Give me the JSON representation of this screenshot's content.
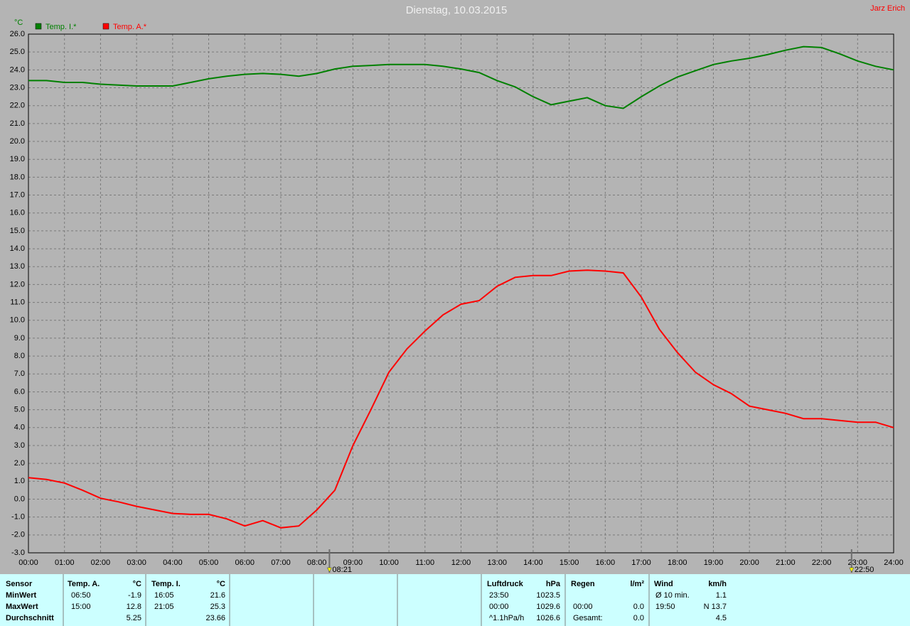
{
  "chart_data": {
    "type": "line",
    "title": "Dienstag, 10.03.2015",
    "author": "Jarz Erich",
    "y_label": "°C",
    "x": [
      0,
      0.5,
      1,
      1.5,
      2,
      2.5,
      3,
      3.5,
      4,
      4.5,
      5,
      5.5,
      6,
      6.5,
      7,
      7.5,
      8,
      8.5,
      9,
      9.5,
      10,
      10.5,
      11,
      11.5,
      12,
      12.5,
      13,
      13.5,
      14,
      14.5,
      15,
      15.5,
      16,
      16.5,
      17,
      17.5,
      18,
      18.5,
      19,
      19.5,
      20,
      20.5,
      21,
      21.5,
      22,
      22.5,
      23,
      23.5,
      24
    ],
    "series": [
      {
        "name": "Temp. I.*",
        "color": "#008000",
        "values": [
          23.4,
          23.4,
          23.3,
          23.3,
          23.2,
          23.15,
          23.1,
          23.1,
          23.1,
          23.3,
          23.5,
          23.65,
          23.75,
          23.8,
          23.75,
          23.65,
          23.8,
          24.05,
          24.2,
          24.25,
          24.3,
          24.3,
          24.3,
          24.2,
          24.05,
          23.85,
          23.4,
          23.05,
          22.5,
          22.05,
          22.25,
          22.45,
          22.0,
          21.85,
          22.5,
          23.1,
          23.6,
          23.95,
          24.3,
          24.5,
          24.65,
          24.85,
          25.1,
          25.3,
          25.25,
          24.9,
          24.5,
          24.2,
          24.0
        ]
      },
      {
        "name": "Temp. A.*",
        "color": "#ff0000",
        "values": [
          1.2,
          1.1,
          0.9,
          0.5,
          0.05,
          -0.15,
          -0.4,
          -0.6,
          -0.8,
          -0.85,
          -0.85,
          -1.1,
          -1.5,
          -1.2,
          -1.6,
          -1.5,
          -0.6,
          0.5,
          3.0,
          5.0,
          7.1,
          8.4,
          9.4,
          10.3,
          10.9,
          11.1,
          11.9,
          12.4,
          12.5,
          12.5,
          12.75,
          12.8,
          12.75,
          12.65,
          11.3,
          9.5,
          8.2,
          7.1,
          6.4,
          5.9,
          5.2,
          5.0,
          4.8,
          4.5,
          4.5,
          4.4,
          4.3,
          4.3,
          4.0
        ]
      }
    ],
    "xlim": [
      0,
      24
    ],
    "ylim": [
      -3,
      26
    ],
    "xticks": [
      {
        "value": 0,
        "label": "00:00"
      },
      {
        "value": 1,
        "label": "01:00"
      },
      {
        "value": 2,
        "label": "02:00"
      },
      {
        "value": 3,
        "label": "03:00"
      },
      {
        "value": 4,
        "label": "04:00"
      },
      {
        "value": 5,
        "label": "05:00"
      },
      {
        "value": 6,
        "label": "06:00"
      },
      {
        "value": 7,
        "label": "07:00"
      },
      {
        "value": 8,
        "label": "08:00"
      },
      {
        "value": 9,
        "label": "09:00"
      },
      {
        "value": 10,
        "label": "10:00"
      },
      {
        "value": 11,
        "label": "11:00"
      },
      {
        "value": 12,
        "label": "12:00"
      },
      {
        "value": 13,
        "label": "13:00"
      },
      {
        "value": 14,
        "label": "14:00"
      },
      {
        "value": 15,
        "label": "15:00"
      },
      {
        "value": 16,
        "label": "16:00"
      },
      {
        "value": 17,
        "label": "17:00"
      },
      {
        "value": 18,
        "label": "18:00"
      },
      {
        "value": 19,
        "label": "19:00"
      },
      {
        "value": 20,
        "label": "20:00"
      },
      {
        "value": 21,
        "label": "21:00"
      },
      {
        "value": 22,
        "label": "22:00"
      },
      {
        "value": 23,
        "label": "23:00"
      },
      {
        "value": 24,
        "label": "24:00"
      }
    ],
    "yticks": [
      {
        "value": -3,
        "label": "-3.0"
      },
      {
        "value": -2,
        "label": "-2.0"
      },
      {
        "value": -1,
        "label": "-1.0"
      },
      {
        "value": 0,
        "label": "0.0"
      },
      {
        "value": 1,
        "label": "1.0"
      },
      {
        "value": 2,
        "label": "2.0"
      },
      {
        "value": 3,
        "label": "3.0"
      },
      {
        "value": 4,
        "label": "4.0"
      },
      {
        "value": 5,
        "label": "5.0"
      },
      {
        "value": 6,
        "label": "6.0"
      },
      {
        "value": 7,
        "label": "7.0"
      },
      {
        "value": 8,
        "label": "8.0"
      },
      {
        "value": 9,
        "label": "9.0"
      },
      {
        "value": 10,
        "label": "10.0"
      },
      {
        "value": 11,
        "label": "11.0"
      },
      {
        "value": 12,
        "label": "12.0"
      },
      {
        "value": 13,
        "label": "13.0"
      },
      {
        "value": 14,
        "label": "14.0"
      },
      {
        "value": 15,
        "label": "15.0"
      },
      {
        "value": 16,
        "label": "16.0"
      },
      {
        "value": 17,
        "label": "17.0"
      },
      {
        "value": 18,
        "label": "18.0"
      },
      {
        "value": 19,
        "label": "19.0"
      },
      {
        "value": 20,
        "label": "20.0"
      },
      {
        "value": 21,
        "label": "21.0"
      },
      {
        "value": 22,
        "label": "22.0"
      },
      {
        "value": 23,
        "label": "23.0"
      },
      {
        "value": 24,
        "label": "24.0"
      },
      {
        "value": 25,
        "label": "25.0"
      },
      {
        "value": 26,
        "label": "26.0"
      }
    ],
    "grid": true,
    "markers": [
      {
        "value": 8.35,
        "label": "08:21"
      },
      {
        "value": 22.833,
        "label": "22:50"
      }
    ]
  },
  "table": {
    "header": [
      "Sensor",
      "Temp. A.",
      "°C",
      "Temp. I.",
      "°C",
      "Luftdruck",
      "hPa",
      "Regen",
      "l/m²",
      "Wind",
      "km/h"
    ],
    "rows": [
      [
        "MinWert",
        "06:50",
        "-1.9",
        "16:05",
        "21.6",
        "23:50",
        "1023.5",
        null,
        null,
        "Ø 10 min.",
        "1.1"
      ],
      [
        "MaxWert",
        "15:00",
        "12.8",
        "21:05",
        "25.3",
        "00:00",
        "1029.6",
        "00:00",
        "0.0",
        "19:50",
        "N 13.7"
      ],
      [
        "Durchschnitt",
        null,
        "5.25",
        null,
        "23.66",
        "^1.1hPa/h",
        "1026.6",
        "Gesamt:",
        "0.0",
        null,
        "4.5"
      ]
    ]
  }
}
